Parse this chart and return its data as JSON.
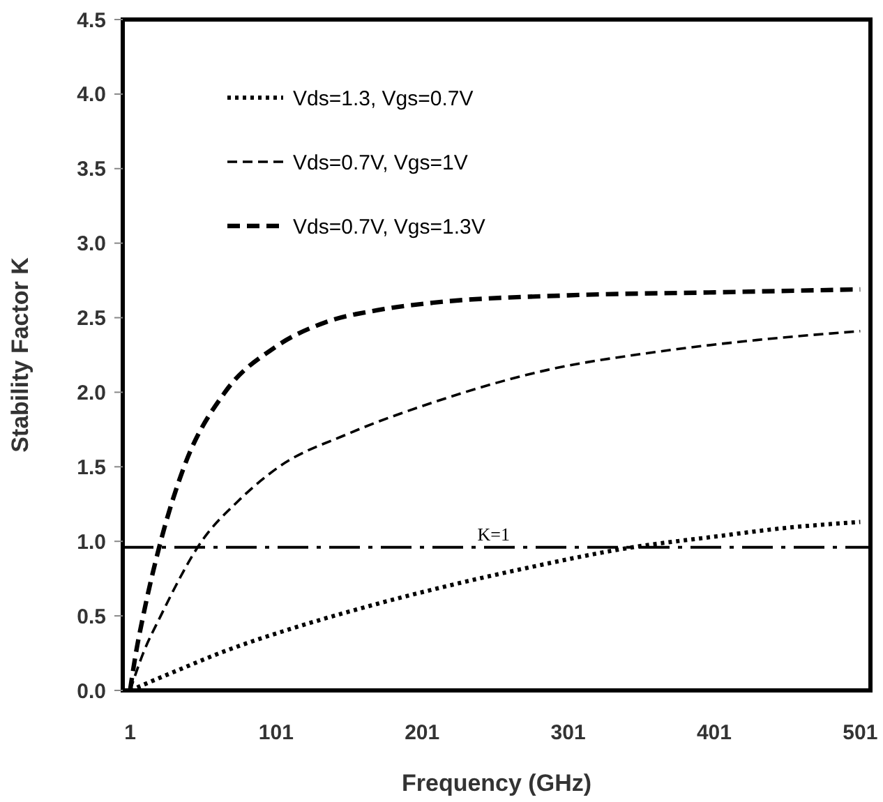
{
  "chart_data": {
    "type": "line",
    "xlabel": "Frequency (GHz)",
    "ylabel": "Stability Factor K",
    "xlim": [
      -4,
      508
    ],
    "ylim": [
      0,
      4.5
    ],
    "xticks": [
      1,
      101,
      201,
      301,
      401,
      501
    ],
    "yticks": [
      {
        "value": 0,
        "label": "0.0"
      },
      {
        "value": 0.5,
        "label": "0.5"
      },
      {
        "value": 1,
        "label": "1.0"
      },
      {
        "value": 1.5,
        "label": "1.5"
      },
      {
        "value": 2,
        "label": "2.0"
      },
      {
        "value": 2.5,
        "label": "2.5"
      },
      {
        "value": 3,
        "label": "3.0"
      },
      {
        "value": 3.5,
        "label": "3.5"
      },
      {
        "value": 4,
        "label": "4.0"
      },
      {
        "value": 4.5,
        "label": "4.5"
      }
    ],
    "grid": false,
    "legend": "top left",
    "marker": "none",
    "series": [
      {
        "name": "Vds=1.3, Vgs=0.7V",
        "color": "#000000",
        "line_style": "dotted",
        "x": [
          1,
          30,
          65,
          120,
          170,
          218,
          272,
          345,
          400,
          450,
          501
        ],
        "values": [
          0,
          0.12,
          0.26,
          0.44,
          0.58,
          0.7,
          0.82,
          0.96,
          1.03,
          1.09,
          1.13
        ]
      },
      {
        "name": "Vds=0.7V, Vgs=1V",
        "color": "#000000",
        "line_style": "dashed",
        "x": [
          1,
          10,
          22,
          50,
          75,
          103,
          150,
          208,
          287,
          361,
          430,
          501
        ],
        "values": [
          0,
          0.25,
          0.5,
          1.0,
          1.27,
          1.5,
          1.72,
          1.93,
          2.15,
          2.27,
          2.35,
          2.41
        ]
      },
      {
        "name": "Vds=0.7V, Vgs=1.3V",
        "color": "#000000",
        "line_style": "dashed",
        "x": [
          1,
          5,
          10,
          22,
          38,
          66,
          100,
          135,
          170,
          208,
          301,
          401,
          501
        ],
        "values": [
          0,
          0.25,
          0.5,
          1.0,
          1.5,
          2.0,
          2.3,
          2.47,
          2.55,
          2.6,
          2.65,
          2.67,
          2.69
        ]
      }
    ],
    "ref_lines": [
      {
        "axis": "y",
        "value": 0.96,
        "label": "K=1",
        "color": "#000000",
        "line_style": "dashed"
      }
    ]
  }
}
